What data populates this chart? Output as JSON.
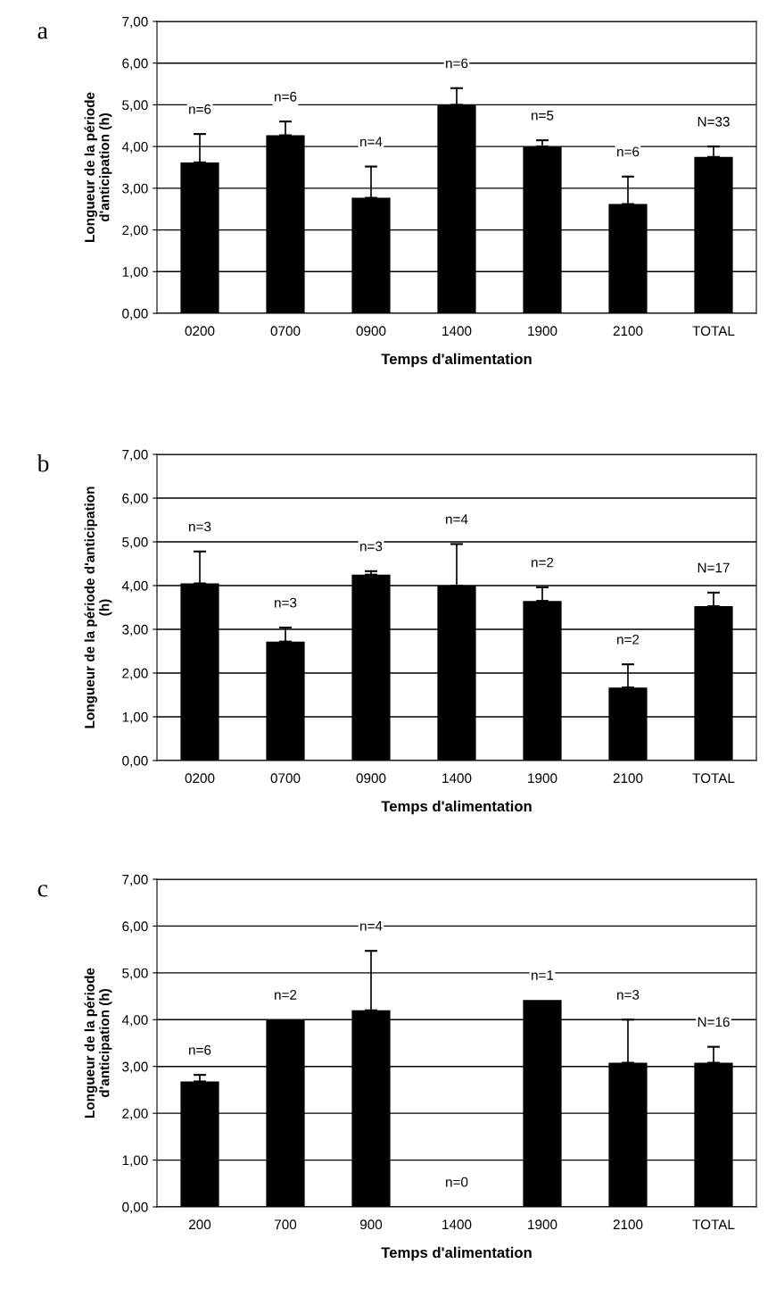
{
  "chart_data": [
    {
      "type": "bar",
      "title": "a",
      "xlabel": "Temps d'alimentation",
      "ylabel": "Longueur de la période\nd'anticipation (h)",
      "categories": [
        "0200",
        "0700",
        "0900",
        "1400",
        "1900",
        "2100",
        "TOTAL"
      ],
      "values": [
        3.62,
        4.27,
        2.77,
        5.0,
        4.0,
        2.62,
        3.75
      ],
      "color": "#000000",
      "errors": [
        [
          3.62,
          4.3
        ],
        [
          4.27,
          4.6
        ],
        [
          2.77,
          3.52
        ],
        [
          5.0,
          5.4
        ],
        [
          4.0,
          4.15
        ],
        [
          2.62,
          3.28
        ],
        [
          3.75,
          4.0
        ]
      ],
      "ylim": [
        0,
        7
      ],
      "yticks": [
        {
          "value": 0,
          "label": "0,00"
        },
        {
          "value": 1,
          "label": "1,00"
        },
        {
          "value": 2,
          "label": "2,00"
        },
        {
          "value": 3,
          "label": "3,00"
        },
        {
          "value": 4,
          "label": "4,00"
        },
        {
          "value": 5,
          "label": "5,00"
        },
        {
          "value": 6,
          "label": "6,00"
        },
        {
          "value": 7,
          "label": "7,00"
        }
      ],
      "grid": "y",
      "legend": false,
      "annotations": [
        "n=6",
        "n=6",
        "n=4",
        "n=6",
        "n=5",
        "n=6",
        "N=33"
      ]
    },
    {
      "type": "bar",
      "title": "b",
      "xlabel": "Temps d'alimentation",
      "ylabel": "Longueur de la période d'anticipation\n(h)",
      "categories": [
        "0200",
        "0700",
        "0900",
        "1400",
        "1900",
        "2100",
        "TOTAL"
      ],
      "values": [
        4.05,
        2.72,
        4.25,
        4.0,
        3.65,
        1.67,
        3.53
      ],
      "color": "#000000",
      "errors": [
        [
          4.05,
          4.78
        ],
        [
          2.72,
          3.04
        ],
        [
          4.25,
          4.33
        ],
        [
          4.0,
          4.95
        ],
        [
          3.65,
          3.96
        ],
        [
          1.67,
          2.2
        ],
        [
          3.53,
          3.84
        ]
      ],
      "ylim": [
        0,
        7
      ],
      "yticks": [
        {
          "value": 0,
          "label": "0,00"
        },
        {
          "value": 1,
          "label": "1,00"
        },
        {
          "value": 2,
          "label": "2,00"
        },
        {
          "value": 3,
          "label": "3,00"
        },
        {
          "value": 4,
          "label": "4,00"
        },
        {
          "value": 5,
          "label": "5,00"
        },
        {
          "value": 6,
          "label": "6,00"
        },
        {
          "value": 7,
          "label": "7,00"
        }
      ],
      "grid": "y",
      "legend": false,
      "annotations": [
        "n=3",
        "n=3",
        "n=3",
        "n=4",
        "n=2",
        "n=2",
        "N=17"
      ]
    },
    {
      "type": "bar",
      "title": "c",
      "xlabel": "Temps d'alimentation",
      "ylabel": "Longueur de la période\nd'anticipation (h)",
      "categories": [
        "200",
        "700",
        "900",
        "1400",
        "1900",
        "2100",
        "TOTAL"
      ],
      "values": [
        2.68,
        4.0,
        4.2,
        null,
        4.42,
        3.08,
        3.08
      ],
      "color": "#000000",
      "errors": [
        [
          2.68,
          2.82
        ],
        null,
        [
          4.2,
          5.47
        ],
        null,
        null,
        [
          3.08,
          4.0
        ],
        [
          3.08,
          3.42
        ]
      ],
      "ylim": [
        0,
        7
      ],
      "yticks": [
        {
          "value": 0,
          "label": "0,00"
        },
        {
          "value": 1,
          "label": "1,00"
        },
        {
          "value": 2,
          "label": "2,00"
        },
        {
          "value": 3,
          "label": "3,00"
        },
        {
          "value": 4,
          "label": "4,00"
        },
        {
          "value": 5,
          "label": "5,00"
        },
        {
          "value": 6,
          "label": "6,00"
        },
        {
          "value": 7,
          "label": "7,00"
        }
      ],
      "grid": "y",
      "legend": false,
      "annotations": [
        "n=6",
        "n=2",
        "n=4",
        "n=0",
        "n=1",
        "n=3",
        "N=16"
      ]
    }
  ]
}
